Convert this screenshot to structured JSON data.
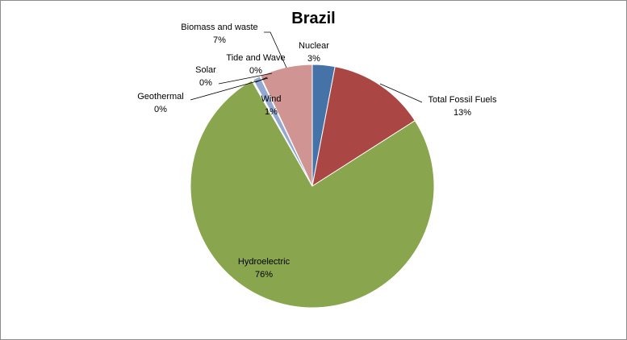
{
  "chart_data": {
    "type": "pie",
    "title": "Brazil",
    "slices": [
      {
        "name": "Nuclear",
        "value": 3,
        "label": "3%",
        "color": "#4572a7"
      },
      {
        "name": "Total Fossil Fuels",
        "value": 13,
        "label": "13%",
        "color": "#aa4643"
      },
      {
        "name": "Hydroelectric",
        "value": 76,
        "label": "76%",
        "color": "#89a54e"
      },
      {
        "name": "Geothermal",
        "value": 0.1,
        "label": "0%",
        "color": "#80699b"
      },
      {
        "name": "Solar",
        "value": 0.1,
        "label": "0%",
        "color": "#3d96ae"
      },
      {
        "name": "Wind",
        "value": 1,
        "label": "1%",
        "color": "#93a9cf"
      },
      {
        "name": "Tide and Wave",
        "value": 0.1,
        "label": "0%",
        "color": "#db843d"
      },
      {
        "name": "Biomass and waste",
        "value": 7,
        "label": "7%",
        "color": "#d09493"
      }
    ],
    "start_angle_deg": 0,
    "direction": "clockwise",
    "legend": "none"
  }
}
